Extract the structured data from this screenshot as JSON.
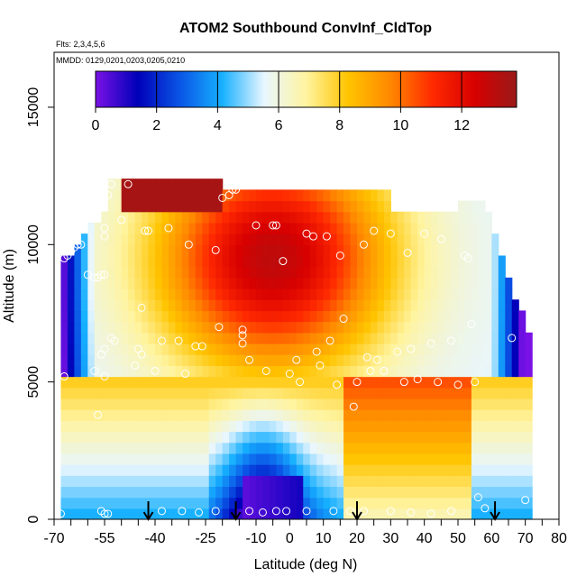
{
  "chart_data": {
    "type": "heatmap",
    "title": "ATOM2 Southbound ConvInf_CldTop",
    "flights_label": "Flts: 2,3,4,5,6",
    "dates_label": "MMDD: 0129,0201,0203,0205,0210",
    "xlabel": "Latitude (deg N)",
    "ylabel": "Altitude (m)",
    "xlim": [
      -70,
      80
    ],
    "ylim": [
      0,
      17000
    ],
    "x_ticks": [
      -70,
      -65,
      -60,
      -55,
      -50,
      -45,
      -40,
      -35,
      -30,
      -25,
      -20,
      -15,
      -10,
      -5,
      0,
      5,
      10,
      15,
      20,
      25,
      30,
      35,
      40,
      45,
      50,
      55,
      60,
      65,
      70,
      75,
      80
    ],
    "x_tick_labels": [
      "-70",
      "-55",
      "-40",
      "-25",
      "-10",
      "0",
      "10",
      "20",
      "30",
      "40",
      "50",
      "60",
      "70",
      "80"
    ],
    "x_tick_label_values": [
      -70,
      -55,
      -40,
      -25,
      -10,
      0,
      10,
      20,
      30,
      40,
      50,
      60,
      70,
      80
    ],
    "y_ticks": [
      0,
      5000,
      10000,
      15000
    ],
    "y_tick_labels": [
      "0",
      "5000",
      "10000",
      "15000"
    ],
    "colorbar": {
      "min": 0,
      "max": 13.8,
      "ticks": [
        0,
        2,
        4,
        6,
        8,
        10,
        12
      ],
      "tick_labels": [
        "0",
        "2",
        "4",
        "6",
        "8",
        "10",
        "12"
      ],
      "colors": [
        "#7a12e6",
        "#0000b8",
        "#0a55e6",
        "#16b0ff",
        "#e8f6ff",
        "#fff4a0",
        "#ffc400",
        "#ff8800",
        "#ff2a00",
        "#d80000",
        "#9a1a1a"
      ]
    },
    "data_extent": {
      "lat_min": -68,
      "lat_max": 72,
      "alt_max": 12500
    },
    "flight_dip_latitudes": [
      -42,
      -16,
      20,
      61
    ],
    "sample_points": [
      [
        -68,
        200
      ],
      [
        -67,
        5200
      ],
      [
        -67,
        9500
      ],
      [
        -66,
        9600
      ],
      [
        -65,
        9750
      ],
      [
        -64,
        9900
      ],
      [
        -63,
        10000
      ],
      [
        -62,
        10000
      ],
      [
        -60,
        8900
      ],
      [
        -58,
        8800
      ],
      [
        -57,
        8800
      ],
      [
        -56,
        8900
      ],
      [
        -55,
        8900
      ],
      [
        -55,
        10300
      ],
      [
        -55,
        10600
      ],
      [
        -54,
        11800
      ],
      [
        -53,
        12200
      ],
      [
        -57,
        3800
      ],
      [
        -58,
        5400
      ],
      [
        -56,
        6000
      ],
      [
        -55,
        6200
      ],
      [
        -55,
        5200
      ],
      [
        -56,
        300
      ],
      [
        -55,
        200
      ],
      [
        -54,
        200
      ],
      [
        -52,
        6500
      ],
      [
        -53,
        6600
      ],
      [
        -50,
        10900
      ],
      [
        -48,
        12200
      ],
      [
        -46,
        5600
      ],
      [
        -45,
        6200
      ],
      [
        -44,
        7700
      ],
      [
        -44,
        6000
      ],
      [
        -43,
        10500
      ],
      [
        -42,
        10500
      ],
      [
        -40,
        5400
      ],
      [
        -38,
        6500
      ],
      [
        -36,
        10600
      ],
      [
        -33,
        6500
      ],
      [
        -31,
        5300
      ],
      [
        -30,
        10000
      ],
      [
        -28,
        6300
      ],
      [
        -26,
        6300
      ],
      [
        -22,
        9800
      ],
      [
        -21,
        7000
      ],
      [
        -20,
        11700
      ],
      [
        -18,
        11800
      ],
      [
        -17,
        12000
      ],
      [
        -16,
        12000
      ],
      [
        -14,
        6400
      ],
      [
        -14,
        6700
      ],
      [
        -14,
        6900
      ],
      [
        -12,
        5800
      ],
      [
        -10,
        10700
      ],
      [
        -7,
        5400
      ],
      [
        -5,
        10700
      ],
      [
        -4,
        10700
      ],
      [
        -2,
        9400
      ],
      [
        0,
        5300
      ],
      [
        2,
        5800
      ],
      [
        3,
        5000
      ],
      [
        5,
        10400
      ],
      [
        7,
        10300
      ],
      [
        8,
        6100
      ],
      [
        9,
        5600
      ],
      [
        11,
        10300
      ],
      [
        12,
        6500
      ],
      [
        14,
        4900
      ],
      [
        15,
        9600
      ],
      [
        16,
        7300
      ],
      [
        19,
        4100
      ],
      [
        20,
        5000
      ],
      [
        22,
        10000
      ],
      [
        23,
        5900
      ],
      [
        24,
        5400
      ],
      [
        25,
        10500
      ],
      [
        26,
        5800
      ],
      [
        28,
        5400
      ],
      [
        30,
        10400
      ],
      [
        32,
        6100
      ],
      [
        34,
        5000
      ],
      [
        35,
        9700
      ],
      [
        36,
        6200
      ],
      [
        38,
        5100
      ],
      [
        40,
        10400
      ],
      [
        42,
        6400
      ],
      [
        44,
        5000
      ],
      [
        45,
        10200
      ],
      [
        48,
        6500
      ],
      [
        50,
        4900
      ],
      [
        52,
        9600
      ],
      [
        53,
        9500
      ],
      [
        54,
        7100
      ],
      [
        55,
        5000
      ],
      [
        56,
        800
      ],
      [
        58,
        400
      ],
      [
        62,
        11300
      ],
      [
        64,
        11300
      ],
      [
        66,
        6600
      ],
      [
        70,
        700
      ],
      [
        -38,
        300
      ],
      [
        -32,
        300
      ],
      [
        -27,
        250
      ],
      [
        -22,
        300
      ],
      [
        -12,
        300
      ],
      [
        -8,
        250
      ],
      [
        -4,
        300
      ],
      [
        -1,
        300
      ],
      [
        5,
        300
      ],
      [
        13,
        300
      ],
      [
        18,
        300
      ],
      [
        22,
        300
      ],
      [
        30,
        300
      ],
      [
        36,
        250
      ],
      [
        42,
        200
      ],
      [
        48,
        300
      ]
    ]
  }
}
